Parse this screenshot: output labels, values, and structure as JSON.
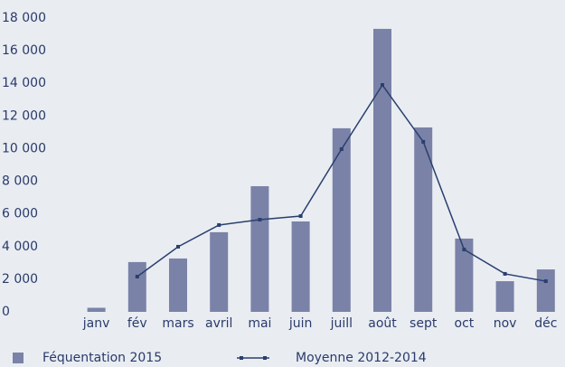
{
  "chart_data": {
    "type": "bar",
    "categories": [
      "janv",
      "fév",
      "mars",
      "avril",
      "mai",
      "juin",
      "juill",
      "août",
      "sept",
      "oct",
      "nov",
      "déc"
    ],
    "series": [
      {
        "name": "Féquentation 2015",
        "type": "bar",
        "color": "#7a82a8",
        "values": [
          250,
          3050,
          3270,
          4880,
          7700,
          5540,
          11250,
          17340,
          11300,
          4490,
          1880,
          2600
        ]
      },
      {
        "name": "Moyenne 2012-2014",
        "type": "line",
        "color": "#2a3f6e",
        "values": [
          null,
          2160,
          3990,
          5320,
          5650,
          5870,
          9970,
          13900,
          10420,
          3820,
          2330,
          1880
        ]
      }
    ],
    "ylim": [
      0,
      18000
    ],
    "yticks": [
      0,
      {
        "value": 2000,
        "label": "2 000"
      },
      {
        "value": 4000,
        "label": "4 000"
      },
      {
        "value": 6000,
        "label": "6 000"
      },
      {
        "value": 8000,
        "label": "8 000"
      },
      {
        "value": 10000,
        "label": "10 000"
      },
      {
        "value": 12000,
        "label": "12 000"
      },
      {
        "value": 14000,
        "label": "14 000"
      },
      {
        "value": 16000,
        "label": "16 000"
      },
      {
        "value": 18000,
        "label": "18 000"
      }
    ],
    "grid": false
  }
}
